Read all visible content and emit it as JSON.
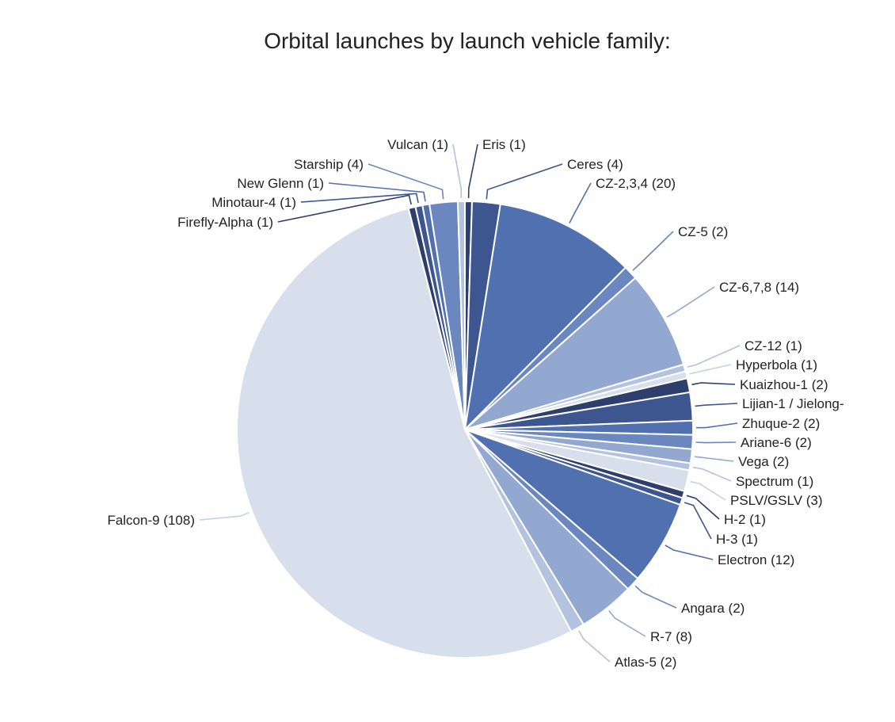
{
  "chart_data": {
    "type": "pie",
    "title": "Orbital launches by launch vehicle family:",
    "slices": [
      {
        "label": "Eris (1)",
        "value": 1,
        "color": "#2e3f6b"
      },
      {
        "label": "Ceres (4)",
        "value": 4,
        "color": "#3e5690"
      },
      {
        "label": "CZ-2,3,4 (20)",
        "value": 20,
        "color": "#5070b0"
      },
      {
        "label": "CZ-5 (2)",
        "value": 2,
        "color": "#6a87c0"
      },
      {
        "label": "CZ-6,7,8 (14)",
        "value": 14,
        "color": "#93a8d0"
      },
      {
        "label": "CZ-12 (1)",
        "value": 1,
        "color": "#b3c2de"
      },
      {
        "label": "Hyperbola (1)",
        "value": 1,
        "color": "#d7deec"
      },
      {
        "label": "Kuaizhou-1 (2)",
        "value": 2,
        "color": "#2e3f6b"
      },
      {
        "label": "Lijian-1 / Jielong-",
        "value": 4,
        "color": "#3e5690"
      },
      {
        "label": "Zhuque-2 (2)",
        "value": 2,
        "color": "#5070b0"
      },
      {
        "label": "Ariane-6 (2)",
        "value": 2,
        "color": "#6a87c0"
      },
      {
        "label": "Vega (2)",
        "value": 2,
        "color": "#93a8d0"
      },
      {
        "label": "Spectrum (1)",
        "value": 1,
        "color": "#b3c2de"
      },
      {
        "label": "PSLV/GSLV (3)",
        "value": 3,
        "color": "#d7deec"
      },
      {
        "label": "H-2 (1)",
        "value": 1,
        "color": "#2e3f6b"
      },
      {
        "label": "H-3 (1)",
        "value": 1,
        "color": "#3e5690"
      },
      {
        "label": "Electron (12)",
        "value": 12,
        "color": "#5070b0"
      },
      {
        "label": "Angara (2)",
        "value": 2,
        "color": "#6a87c0"
      },
      {
        "label": "R-7 (8)",
        "value": 8,
        "color": "#93a8d0"
      },
      {
        "label": "Atlas-5 (2)",
        "value": 2,
        "color": "#b3c2de"
      },
      {
        "label": "Falcon-9 (108)",
        "value": 108,
        "color": "#d7deec"
      },
      {
        "label": "Firefly-Alpha (1)",
        "value": 1,
        "color": "#2e3f6b"
      },
      {
        "label": "Minotaur-4 (1)",
        "value": 1,
        "color": "#3e5690"
      },
      {
        "label": "New Glenn (1)",
        "value": 1,
        "color": "#5070b0"
      },
      {
        "label": "Starship (4)",
        "value": 4,
        "color": "#6a87c0"
      },
      {
        "label": "Vulcan (1)",
        "value": 1,
        "color": "#b3c2de"
      }
    ]
  }
}
